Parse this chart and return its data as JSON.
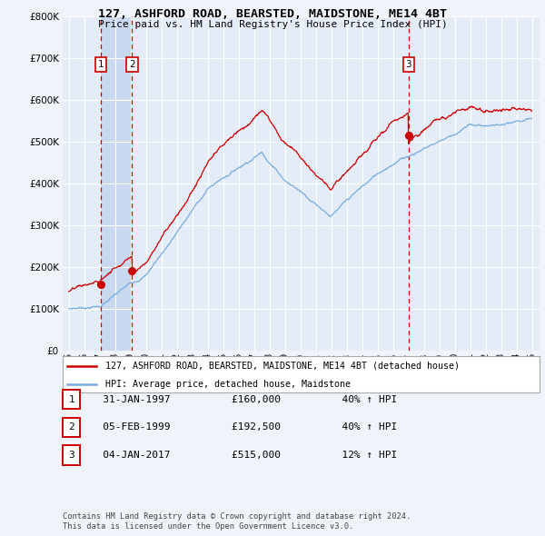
{
  "title": "127, ASHFORD ROAD, BEARSTED, MAIDSTONE, ME14 4BT",
  "subtitle": "Price paid vs. HM Land Registry's House Price Index (HPI)",
  "legend_line1": "127, ASHFORD ROAD, BEARSTED, MAIDSTONE, ME14 4BT (detached house)",
  "legend_line2": "HPI: Average price, detached house, Maidstone",
  "footer1": "Contains HM Land Registry data © Crown copyright and database right 2024.",
  "footer2": "This data is licensed under the Open Government Licence v3.0.",
  "transactions": [
    {
      "num": 1,
      "date": "31-JAN-1997",
      "price": 160000,
      "hpi_pct": "40%",
      "direction": "↑"
    },
    {
      "num": 2,
      "date": "05-FEB-1999",
      "price": 192500,
      "hpi_pct": "40%",
      "direction": "↑"
    },
    {
      "num": 3,
      "date": "04-JAN-2017",
      "price": 515000,
      "hpi_pct": "12%",
      "direction": "↑"
    }
  ],
  "transaction_years": [
    1997.08,
    1999.09,
    2017.01
  ],
  "transaction_prices": [
    160000,
    192500,
    515000
  ],
  "ylim": [
    0,
    800000
  ],
  "yticks": [
    0,
    100000,
    200000,
    300000,
    400000,
    500000,
    600000,
    700000,
    800000
  ],
  "background_color": "#f0f4fa",
  "plot_bg": "#e4edf7",
  "shade_color": "#c8d8ee",
  "red_line_color": "#cc0000",
  "blue_line_color": "#7aabe0",
  "dashed_vline_color": "#cc0000",
  "grid_color": "#ffffff"
}
